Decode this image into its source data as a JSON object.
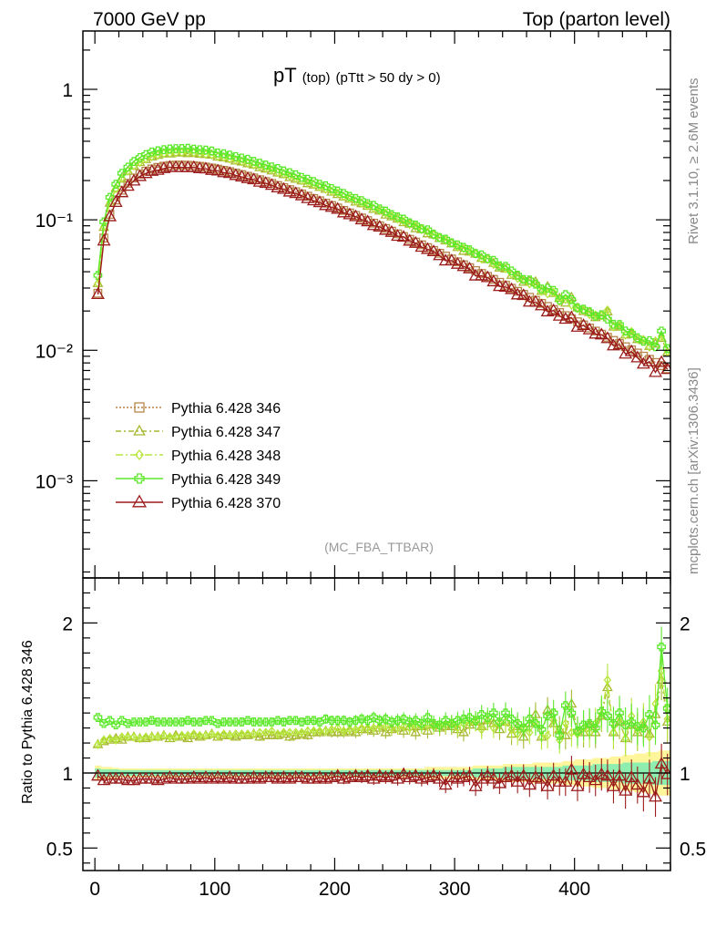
{
  "header": {
    "left": "7000 GeV pp",
    "right": "Top (parton level)"
  },
  "title": {
    "main": "pT",
    "sub1": "(top)",
    "sub2": "(pTtt > 50 dy > 0)"
  },
  "side_labels": {
    "rivet": "Rivet 3.1.10, ≥ 2.6M events",
    "mcplots": "mcplots.cern.ch [arXiv:1306.3436]"
  },
  "analysis_tag": "(MC_FBA_TTBAR)",
  "ratio_ylabel": "Ratio to Pythia 6.428 346",
  "colors": {
    "346": "#b8864b",
    "347": "#a8b832",
    "348": "#b6e63a",
    "349": "#5ce82a",
    "370": "#9b1b1b",
    "band_outer": "#fff59a",
    "band_inner": "#8eeeb0"
  },
  "chart_data": [
    {
      "type": "line",
      "panel": "main",
      "yscale": "log",
      "xlim": [
        -10,
        480
      ],
      "ylim": [
        0.00018,
        2.8
      ],
      "x": [
        2.5,
        7.5,
        12.5,
        17.5,
        22.5,
        27.5,
        32.5,
        37.5,
        42.5,
        47.5,
        52.5,
        57.5,
        62.5,
        67.5,
        72.5,
        77.5,
        82.5,
        87.5,
        92.5,
        97.5,
        102.5,
        107.5,
        112.5,
        117.5,
        122.5,
        127.5,
        132.5,
        137.5,
        142.5,
        147.5,
        152.5,
        157.5,
        162.5,
        167.5,
        172.5,
        177.5,
        182.5,
        187.5,
        192.5,
        197.5,
        202.5,
        207.5,
        212.5,
        217.5,
        222.5,
        227.5,
        232.5,
        237.5,
        242.5,
        247.5,
        252.5,
        257.5,
        262.5,
        267.5,
        272.5,
        277.5,
        282.5,
        287.5,
        292.5,
        297.5,
        302.5,
        307.5,
        312.5,
        317.5,
        322.5,
        327.5,
        332.5,
        337.5,
        342.5,
        347.5,
        352.5,
        357.5,
        362.5,
        367.5,
        372.5,
        377.5,
        382.5,
        387.5,
        392.5,
        397.5,
        402.5,
        407.5,
        412.5,
        417.5,
        422.5,
        427.5,
        432.5,
        437.5,
        442.5,
        447.5,
        452.5,
        457.5,
        462.5,
        467.5,
        472.5,
        477.5
      ],
      "yticks": [
        {
          "value": 1,
          "label": "1"
        },
        {
          "value": 0.1,
          "label": "10⁻¹"
        },
        {
          "value": 0.01,
          "label": "10⁻²"
        },
        {
          "value": 0.001,
          "label": "10⁻³"
        }
      ],
      "series": [
        {
          "name": "Pythia 6.428 346",
          "key": "346",
          "marker": "square-open",
          "dash": "2 2",
          "ratio": 1.0
        },
        {
          "name": "Pythia 6.428 347",
          "key": "347",
          "marker": "triangle-open",
          "dash": "6 3 2 3",
          "ratio": 1.24
        },
        {
          "name": "Pythia 6.428 348",
          "key": "348",
          "marker": "diamond-open",
          "dash": "8 3 2 3",
          "ratio": 1.27
        },
        {
          "name": "Pythia 6.428 349",
          "key": "349",
          "marker": "cross",
          "dash": "",
          "ratio": 1.33
        },
        {
          "name": "Pythia 6.428 370",
          "key": "370",
          "marker": "triangle-open",
          "dash": "",
          "ratio": 0.96
        }
      ]
    },
    {
      "type": "line",
      "panel": "ratio",
      "xlim": [
        -10,
        480
      ],
      "ylim": [
        0.35,
        2.3
      ],
      "xticks": [
        0,
        100,
        200,
        300,
        400
      ],
      "yticks": [
        {
          "value": 2,
          "label": "2"
        },
        {
          "value": 1,
          "label": "1"
        },
        {
          "value": 0.5,
          "label": "0.5"
        }
      ],
      "series": [
        {
          "key": "347",
          "values": [
            1.19,
            1.21,
            1.22,
            1.23,
            1.22,
            1.24,
            1.24,
            1.23,
            1.23,
            1.24,
            1.24,
            1.25,
            1.23,
            1.25,
            1.24,
            1.23,
            1.25,
            1.24,
            1.25,
            1.26,
            1.24,
            1.25,
            1.25,
            1.24,
            1.25,
            1.25,
            1.26,
            1.24,
            1.25,
            1.25,
            1.25,
            1.26,
            1.24,
            1.25,
            1.26,
            1.25,
            1.27,
            1.27,
            1.28,
            1.27,
            1.27,
            1.27,
            1.28,
            1.27,
            1.29,
            1.29,
            1.28,
            1.3,
            1.27,
            1.29,
            1.3,
            1.28,
            1.31,
            1.27,
            1.31,
            1.28,
            1.32,
            1.3,
            1.31,
            1.31,
            1.29,
            1.27,
            1.32,
            1.34,
            1.31,
            1.35,
            1.33,
            1.29,
            1.34,
            1.26,
            1.31,
            1.24,
            1.33,
            1.39,
            1.24,
            1.42,
            1.33,
            1.29,
            1.25,
            1.46,
            1.28,
            1.27,
            1.32,
            1.27,
            1.38,
            1.57,
            1.27,
            1.34,
            1.23,
            1.32,
            1.27,
            1.32,
            1.26,
            1.39,
            1.62,
            1.34
          ]
        },
        {
          "key": "348",
          "values": [
            1.19,
            1.22,
            1.23,
            1.22,
            1.24,
            1.24,
            1.24,
            1.23,
            1.24,
            1.24,
            1.24,
            1.25,
            1.24,
            1.24,
            1.25,
            1.25,
            1.26,
            1.25,
            1.25,
            1.26,
            1.25,
            1.26,
            1.25,
            1.26,
            1.26,
            1.26,
            1.26,
            1.27,
            1.27,
            1.28,
            1.26,
            1.27,
            1.27,
            1.27,
            1.27,
            1.28,
            1.28,
            1.28,
            1.28,
            1.29,
            1.3,
            1.28,
            1.29,
            1.29,
            1.3,
            1.3,
            1.3,
            1.31,
            1.31,
            1.3,
            1.3,
            1.31,
            1.3,
            1.32,
            1.31,
            1.32,
            1.31,
            1.31,
            1.32,
            1.33,
            1.3,
            1.33,
            1.33,
            1.34,
            1.29,
            1.35,
            1.3,
            1.33,
            1.34,
            1.29,
            1.26,
            1.3,
            1.27,
            1.34,
            1.24,
            1.25,
            1.35,
            1.22,
            1.33,
            1.27,
            1.26,
            1.3,
            1.27,
            1.33,
            1.39,
            1.62,
            1.27,
            1.37,
            1.23,
            1.38,
            1.28,
            1.34,
            1.24,
            1.46,
            1.68,
            1.36
          ]
        },
        {
          "key": "349",
          "values": [
            1.37,
            1.33,
            1.35,
            1.32,
            1.35,
            1.33,
            1.34,
            1.34,
            1.34,
            1.35,
            1.34,
            1.34,
            1.34,
            1.34,
            1.34,
            1.35,
            1.34,
            1.34,
            1.35,
            1.35,
            1.33,
            1.34,
            1.34,
            1.34,
            1.34,
            1.35,
            1.34,
            1.34,
            1.34,
            1.34,
            1.35,
            1.34,
            1.35,
            1.35,
            1.34,
            1.35,
            1.35,
            1.34,
            1.36,
            1.35,
            1.35,
            1.35,
            1.34,
            1.35,
            1.36,
            1.35,
            1.37,
            1.35,
            1.36,
            1.34,
            1.35,
            1.36,
            1.34,
            1.35,
            1.33,
            1.37,
            1.33,
            1.32,
            1.35,
            1.33,
            1.35,
            1.36,
            1.37,
            1.35,
            1.39,
            1.37,
            1.4,
            1.34,
            1.4,
            1.36,
            1.33,
            1.3,
            1.36,
            1.33,
            1.29,
            1.38,
            1.4,
            1.25,
            1.45,
            1.4,
            1.28,
            1.32,
            1.33,
            1.3,
            1.41,
            1.38,
            1.33,
            1.4,
            1.32,
            1.34,
            1.31,
            1.3,
            1.39,
            1.32,
            1.84,
            1.43
          ]
        },
        {
          "key": "370",
          "values": [
            0.98,
            0.95,
            0.96,
            0.96,
            0.96,
            0.95,
            0.95,
            0.96,
            0.96,
            0.96,
            0.95,
            0.96,
            0.97,
            0.96,
            0.96,
            0.96,
            0.97,
            0.96,
            0.97,
            0.96,
            0.97,
            0.96,
            0.97,
            0.96,
            0.96,
            0.96,
            0.97,
            0.96,
            0.97,
            0.97,
            0.96,
            0.97,
            0.96,
            0.97,
            0.97,
            0.96,
            0.96,
            0.97,
            0.96,
            0.97,
            0.98,
            0.96,
            0.97,
            0.98,
            0.97,
            0.98,
            0.96,
            0.98,
            0.97,
            0.98,
            0.96,
            0.99,
            0.97,
            0.98,
            0.96,
            0.97,
            0.98,
            0.96,
            0.92,
            0.97,
            0.96,
            0.97,
            0.98,
            0.91,
            0.96,
            0.98,
            0.96,
            0.93,
            0.97,
            0.98,
            0.94,
            0.98,
            0.92,
            0.97,
            0.96,
            0.91,
            0.98,
            0.94,
            0.94,
            1.02,
            0.91,
            0.99,
            0.97,
            0.95,
            0.99,
            0.98,
            0.91,
            0.98,
            0.88,
            0.97,
            0.92,
            0.87,
            0.96,
            0.84,
            1.06,
            0.99
          ]
        }
      ],
      "bands": {
        "inner": [
          0.03,
          0.025,
          0.025,
          0.025,
          0.02,
          0.02,
          0.02,
          0.02,
          0.02,
          0.02,
          0.02,
          0.02,
          0.02,
          0.02,
          0.02,
          0.02,
          0.02,
          0.02,
          0.02,
          0.02,
          0.02,
          0.02,
          0.02,
          0.02,
          0.02,
          0.02,
          0.02,
          0.02,
          0.02,
          0.02,
          0.02,
          0.02,
          0.02,
          0.02,
          0.02,
          0.02,
          0.02,
          0.02,
          0.02,
          0.02,
          0.02,
          0.02,
          0.02,
          0.02,
          0.02,
          0.02,
          0.02,
          0.02,
          0.02,
          0.02,
          0.02,
          0.02,
          0.02,
          0.02,
          0.02,
          0.02,
          0.02,
          0.02,
          0.02,
          0.02,
          0.02,
          0.02,
          0.02,
          0.03,
          0.03,
          0.03,
          0.03,
          0.03,
          0.04,
          0.04,
          0.04,
          0.04,
          0.04,
          0.04,
          0.04,
          0.04,
          0.04,
          0.04,
          0.05,
          0.05,
          0.05,
          0.05,
          0.05,
          0.06,
          0.06,
          0.06,
          0.06,
          0.06,
          0.07,
          0.07,
          0.07,
          0.07,
          0.07,
          0.08,
          0.08,
          0.08
        ],
        "outer": [
          0.05,
          0.04,
          0.04,
          0.035,
          0.03,
          0.03,
          0.03,
          0.03,
          0.03,
          0.03,
          0.03,
          0.03,
          0.03,
          0.03,
          0.03,
          0.03,
          0.03,
          0.03,
          0.03,
          0.03,
          0.03,
          0.03,
          0.03,
          0.03,
          0.03,
          0.03,
          0.03,
          0.03,
          0.03,
          0.03,
          0.03,
          0.03,
          0.03,
          0.03,
          0.03,
          0.03,
          0.03,
          0.03,
          0.03,
          0.03,
          0.03,
          0.03,
          0.03,
          0.03,
          0.03,
          0.03,
          0.03,
          0.03,
          0.03,
          0.03,
          0.03,
          0.03,
          0.03,
          0.03,
          0.03,
          0.04,
          0.04,
          0.04,
          0.04,
          0.04,
          0.04,
          0.04,
          0.04,
          0.05,
          0.05,
          0.05,
          0.05,
          0.05,
          0.06,
          0.06,
          0.06,
          0.06,
          0.06,
          0.07,
          0.07,
          0.07,
          0.07,
          0.07,
          0.08,
          0.08,
          0.09,
          0.09,
          0.09,
          0.1,
          0.1,
          0.1,
          0.11,
          0.11,
          0.12,
          0.12,
          0.13,
          0.13,
          0.14,
          0.14,
          0.15,
          0.15
        ]
      }
    }
  ]
}
